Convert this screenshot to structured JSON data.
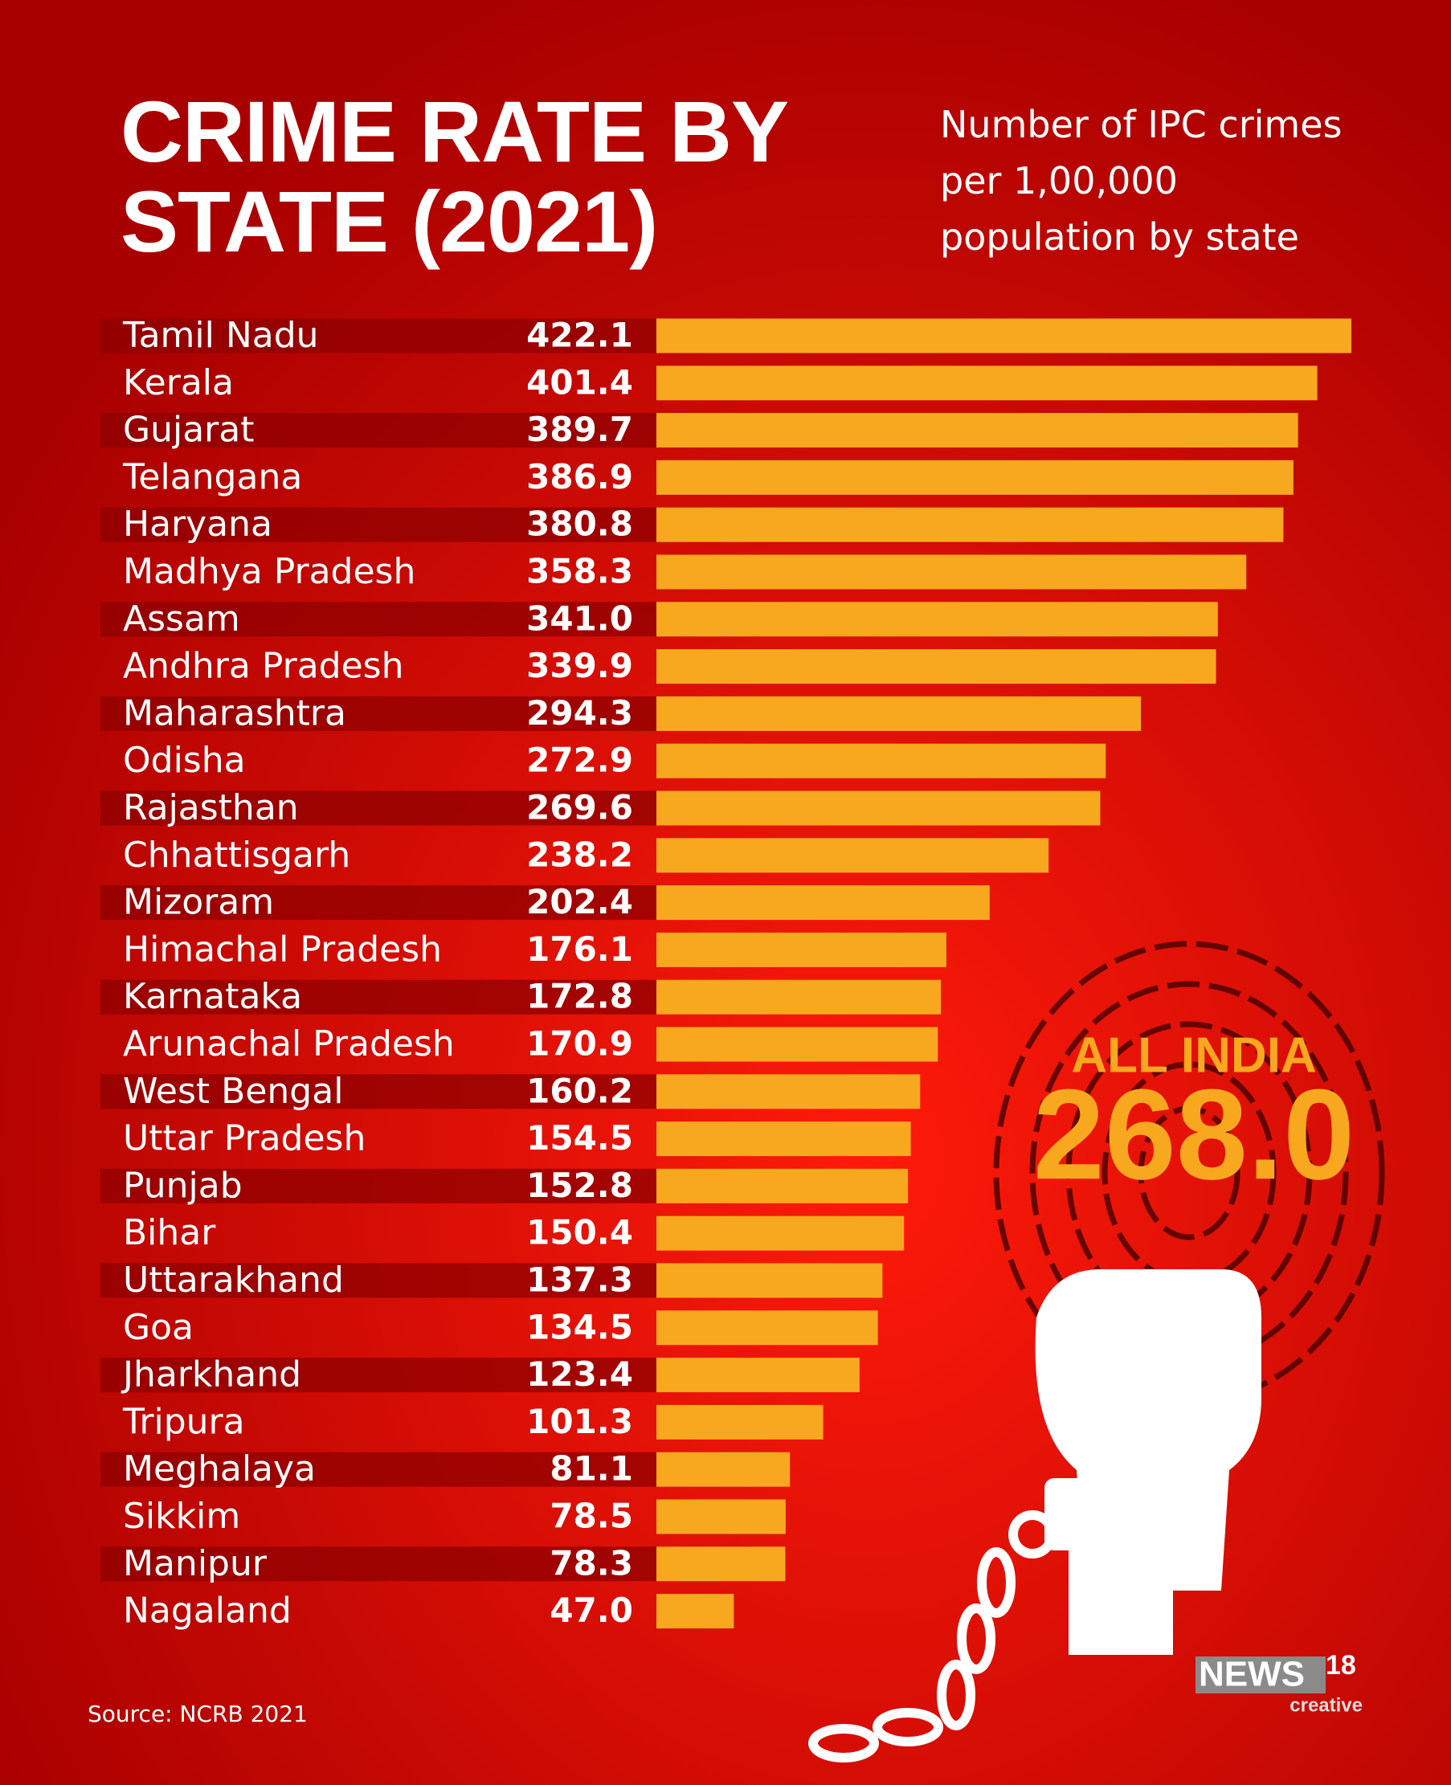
{
  "chart_data": {
    "type": "bar",
    "orientation": "horizontal",
    "title": "CRIME RATE BY STATE (2021)",
    "subtitle": "Number of IPC crimes per 1,00,000 population by state",
    "categories": [
      "Tamil Nadu",
      "Kerala",
      "Gujarat",
      "Telangana",
      "Haryana",
      "Madhya Pradesh",
      "Assam",
      "Andhra Pradesh",
      "Maharashtra",
      "Odisha",
      "Rajasthan",
      "Chhattisgarh",
      "Mizoram",
      "Himachal Pradesh",
      "Karnataka",
      "Arunachal Pradesh",
      "West Bengal",
      "Uttar Pradesh",
      "Punjab",
      "Bihar",
      "Uttarakhand",
      "Goa",
      "Jharkhand",
      "Tripura",
      "Meghalaya",
      "Sikkim",
      "Manipur",
      "Nagaland"
    ],
    "values": [
      422.1,
      401.4,
      389.7,
      386.9,
      380.8,
      358.3,
      341.0,
      339.9,
      294.3,
      272.9,
      269.6,
      238.2,
      202.4,
      176.1,
      172.8,
      170.9,
      160.2,
      154.5,
      152.8,
      150.4,
      137.3,
      134.5,
      123.4,
      101.3,
      81.1,
      78.5,
      78.3,
      47.0
    ],
    "value_labels": [
      "422.1",
      "401.4",
      "389.7",
      "386.9",
      "380.8",
      "358.3",
      "341.0",
      "339.9",
      "294.3",
      "272.9",
      "269.6",
      "238.2",
      "202.4",
      "176.1",
      "172.8",
      "170.9",
      "160.2",
      "154.5",
      "152.8",
      "150.4",
      "137.3",
      "134.5",
      "123.4",
      "101.3",
      "81.1",
      "78.5",
      "78.3",
      "47.0"
    ],
    "color": "#f8a81f",
    "annotation": {
      "label": "ALL INDIA",
      "value": 268.0,
      "value_label": "268.0"
    },
    "source": "Source: NCRB 2021",
    "logo": {
      "name": "NEWS",
      "number": "18",
      "tagline": "creative"
    }
  }
}
